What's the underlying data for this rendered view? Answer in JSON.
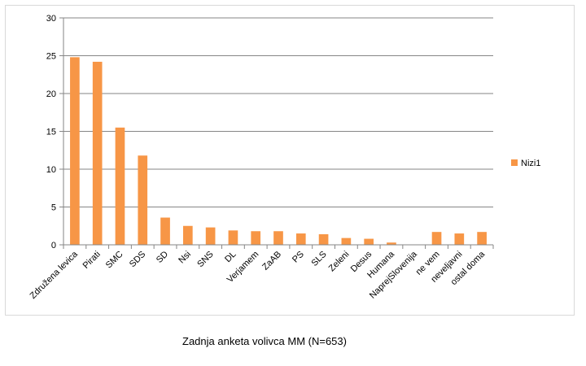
{
  "caption": "Zadnja anketa volivca MM (N=653)",
  "chart_data": {
    "type": "bar",
    "categories": [
      "Združena levica",
      "Pirati",
      "SMC",
      "SDS",
      "SD",
      "Nsi",
      "SNS",
      "DL",
      "Verjamem",
      "ZaAB",
      "PS",
      "SLS",
      "Zeleni",
      "Desus",
      "Humana",
      "NaprejSlovenija",
      "ne vem",
      "neveljavni",
      "ostal doma"
    ],
    "series": [
      {
        "name": "Nizi1",
        "values": [
          24.8,
          24.2,
          15.5,
          11.8,
          3.6,
          2.5,
          2.3,
          1.9,
          1.8,
          1.8,
          1.5,
          1.4,
          0.9,
          0.8,
          0.3,
          0,
          1.7,
          1.5,
          1.7
        ]
      }
    ],
    "title": "",
    "xlabel": "",
    "ylabel": "",
    "ylim": [
      0,
      30
    ],
    "yticks": [
      0,
      5,
      10,
      15,
      20,
      25,
      30
    ],
    "grid": true,
    "legend_position": "right",
    "colors": {
      "bar": "#F79646",
      "grid": "#868686",
      "axis": "#868686"
    }
  }
}
